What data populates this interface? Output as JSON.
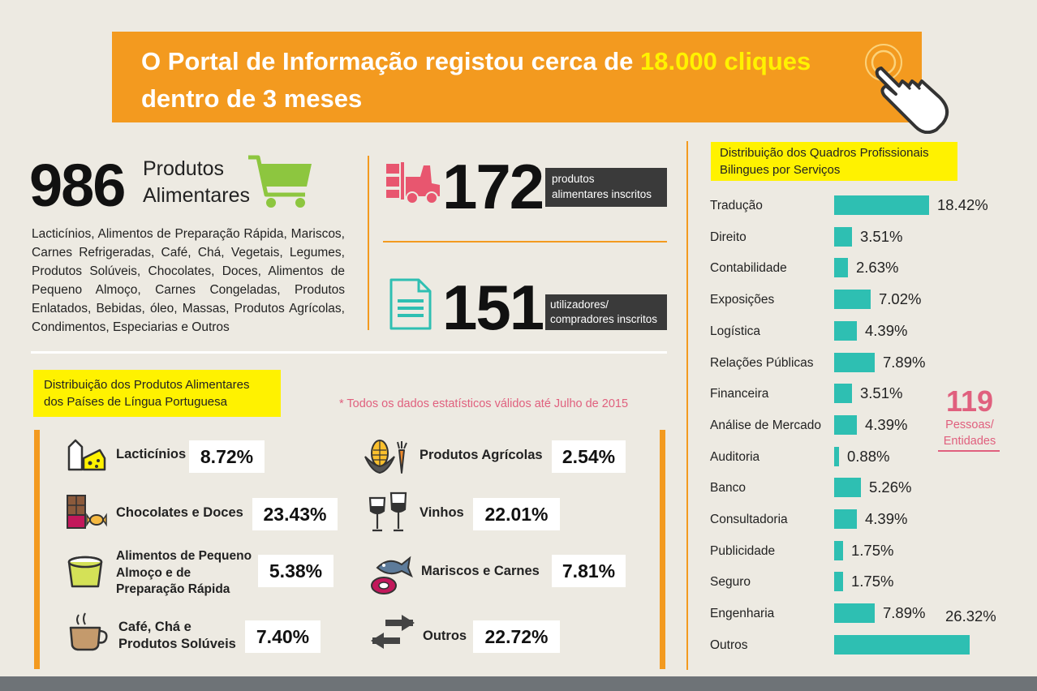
{
  "header": {
    "line1_prefix": "O Portal de Informação registou cerca de ",
    "line1_highlight": "18.000 cliques",
    "line2": "dentro de 3 meses"
  },
  "products": {
    "count": "986",
    "label_line1": "Produtos",
    "label_line2": "Alimentares",
    "list": "Lacticínios, Alimentos de Preparação Rápida, Mariscos, Carnes Refrigeradas, Café, Chá, Vegetais, Legumes, Produtos Solúveis, Chocolates, Doces, Alimentos de Pequeno Almoço, Carnes Congeladas, Produtos Enlatados, Bebidas, óleo, Massas, Produtos Agrícolas, Condimentos, Especiarias e Outros"
  },
  "stats": {
    "registered_products": {
      "value": "172",
      "label_line1": "produtos",
      "label_line2": "alimentares inscritos"
    },
    "registered_users": {
      "value": "151",
      "label_line1": "utilizadores/",
      "label_line2": "compradores inscritos"
    }
  },
  "distribution": {
    "title_line1": "Distribuição dos Produtos Alimentares",
    "title_line2": "dos Países de Língua Portuguesa",
    "note": "* Todos os dados estatísticos válidos até Julho de 2015",
    "categories": [
      {
        "label": "Lacticínios",
        "pct": "8.72%",
        "icon": "dairy-icon"
      },
      {
        "label": "Chocolates e Doces",
        "pct": "23.43%",
        "icon": "chocolate-candy-icon"
      },
      {
        "label_lines": [
          "Alimentos de Pequeno",
          "Almoço e de",
          "Preparação Rápida"
        ],
        "pct": "5.38%",
        "icon": "instant-food-cup-icon"
      },
      {
        "label_lines": [
          "Café,   Chá e",
          "Produtos Solúveis"
        ],
        "pct": "7.40%",
        "icon": "coffee-cup-icon"
      },
      {
        "label": "Produtos Agrícolas",
        "pct": "2.54%",
        "icon": "corn-carrot-icon"
      },
      {
        "label": "Vinhos",
        "pct": "22.01%",
        "icon": "wine-glasses-icon"
      },
      {
        "label": "Mariscos e Carnes",
        "pct": "7.81%",
        "icon": "fish-meat-icon"
      },
      {
        "label": "Outros",
        "pct": "22.72%",
        "icon": "exchange-arrows-icon"
      }
    ]
  },
  "services": {
    "title_line1": "Distribuição dos Quadros Profissionais",
    "title_line2": "Bilingues por Serviços",
    "total": "119",
    "total_label_line1": "Pessoas/",
    "total_label_line2": "Entidades",
    "color": "#2ebfb2",
    "rows": [
      {
        "label": "Tradução",
        "value": 18.42,
        "pct": "18.42%"
      },
      {
        "label": "Direito",
        "value": 3.51,
        "pct": "3.51%"
      },
      {
        "label": "Contabilidade",
        "value": 2.63,
        "pct": "2.63%"
      },
      {
        "label": "Exposições",
        "value": 7.02,
        "pct": "7.02%"
      },
      {
        "label": "Logística",
        "value": 4.39,
        "pct": "4.39%"
      },
      {
        "label": "Relações Públicas",
        "value": 7.89,
        "pct": "7.89%"
      },
      {
        "label": "Financeira",
        "value": 3.51,
        "pct": "3.51%"
      },
      {
        "label": "Análise de Mercado",
        "value": 4.39,
        "pct": "4.39%"
      },
      {
        "label": "Auditoria",
        "value": 0.88,
        "pct": "0.88%"
      },
      {
        "label": "Banco",
        "value": 5.26,
        "pct": "5.26%"
      },
      {
        "label": "Consultadoria",
        "value": 4.39,
        "pct": "4.39%"
      },
      {
        "label": "Publicidade",
        "value": 1.75,
        "pct": "1.75%"
      },
      {
        "label": "Seguro",
        "value": 1.75,
        "pct": "1.75%"
      },
      {
        "label": "Engenharia",
        "value": 7.89,
        "pct": "7.89%"
      },
      {
        "label": "Outros",
        "value": 26.32,
        "pct": "26.32%"
      }
    ]
  },
  "colors": {
    "orange": "#f39a1f",
    "yellow": "#fff200",
    "pink": "#e0607e",
    "teal": "#2ebfb2"
  }
}
